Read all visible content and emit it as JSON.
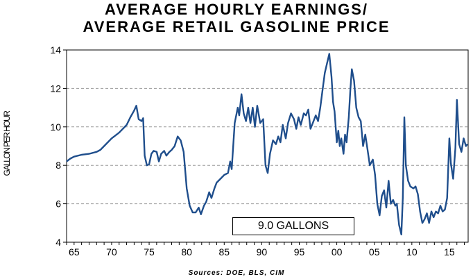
{
  "title": {
    "line1": "AVERAGE HOURLY EARNINGS/",
    "line2": "AVERAGE RETAIL GASOLINE PRICE"
  },
  "source": "Sources:  DOE, BLS, CIM",
  "colors": {
    "series": "#1f4e8c",
    "grid": "#9a9a9a",
    "axis": "#000000"
  },
  "chart_data": {
    "type": "line",
    "title": "AVERAGE HOURLY EARNINGS/ AVERAGE RETAIL GASOLINE PRICE",
    "xlabel": "",
    "ylabel": "GALLON PER HOUR",
    "xlim": [
      1964,
      2017.5
    ],
    "ylim": [
      4,
      14
    ],
    "x_ticks": [
      1965,
      1970,
      1975,
      1980,
      1985,
      1990,
      1995,
      2000,
      2005,
      2010,
      2015
    ],
    "x_tick_labels": [
      "65",
      "70",
      "75",
      "80",
      "85",
      "90",
      "95",
      "00",
      "05",
      "10",
      "15"
    ],
    "y_ticks": [
      4,
      6,
      8,
      10,
      12,
      14
    ],
    "y_tick_labels": [
      "4",
      "6",
      "8",
      "10",
      "12",
      "14"
    ],
    "grid": "horizontal dashed",
    "annotation": "9.0 GALLONS",
    "series": [
      {
        "values": [
          [
            1964.0,
            8.2
          ],
          [
            1964.5,
            8.35
          ],
          [
            1965.0,
            8.45
          ],
          [
            1966.0,
            8.55
          ],
          [
            1967.0,
            8.6
          ],
          [
            1968.0,
            8.7
          ],
          [
            1968.5,
            8.8
          ],
          [
            1969.0,
            9.0
          ],
          [
            1970.0,
            9.4
          ],
          [
            1971.0,
            9.7
          ],
          [
            1972.0,
            10.1
          ],
          [
            1972.5,
            10.5
          ],
          [
            1973.0,
            10.85
          ],
          [
            1973.3,
            11.1
          ],
          [
            1973.6,
            10.4
          ],
          [
            1974.0,
            10.3
          ],
          [
            1974.2,
            10.45
          ],
          [
            1974.4,
            8.5
          ],
          [
            1974.7,
            8.0
          ],
          [
            1975.0,
            8.05
          ],
          [
            1975.3,
            8.6
          ],
          [
            1975.6,
            8.75
          ],
          [
            1976.0,
            8.7
          ],
          [
            1976.3,
            8.2
          ],
          [
            1976.6,
            8.6
          ],
          [
            1977.0,
            8.75
          ],
          [
            1977.3,
            8.5
          ],
          [
            1977.7,
            8.7
          ],
          [
            1978.0,
            8.8
          ],
          [
            1978.4,
            9.0
          ],
          [
            1978.8,
            9.5
          ],
          [
            1979.2,
            9.3
          ],
          [
            1979.6,
            8.7
          ],
          [
            1980.0,
            6.8
          ],
          [
            1980.4,
            5.9
          ],
          [
            1980.8,
            5.55
          ],
          [
            1981.2,
            5.55
          ],
          [
            1981.6,
            5.8
          ],
          [
            1981.9,
            5.45
          ],
          [
            1982.3,
            5.9
          ],
          [
            1982.6,
            6.1
          ],
          [
            1983.0,
            6.6
          ],
          [
            1983.3,
            6.3
          ],
          [
            1983.7,
            6.8
          ],
          [
            1984.0,
            7.1
          ],
          [
            1984.5,
            7.3
          ],
          [
            1985.0,
            7.5
          ],
          [
            1985.5,
            7.6
          ],
          [
            1985.8,
            8.2
          ],
          [
            1986.0,
            7.8
          ],
          [
            1986.4,
            10.2
          ],
          [
            1986.8,
            11.0
          ],
          [
            1987.0,
            10.6
          ],
          [
            1987.3,
            11.7
          ],
          [
            1987.6,
            10.7
          ],
          [
            1987.9,
            10.3
          ],
          [
            1988.2,
            11.0
          ],
          [
            1988.5,
            10.2
          ],
          [
            1988.8,
            11.0
          ],
          [
            1989.1,
            10.0
          ],
          [
            1989.4,
            11.1
          ],
          [
            1989.8,
            10.2
          ],
          [
            1990.2,
            10.4
          ],
          [
            1990.5,
            8.0
          ],
          [
            1990.8,
            7.6
          ],
          [
            1991.1,
            8.6
          ],
          [
            1991.5,
            9.3
          ],
          [
            1991.9,
            9.1
          ],
          [
            1992.2,
            9.5
          ],
          [
            1992.5,
            9.2
          ],
          [
            1992.8,
            10.1
          ],
          [
            1993.2,
            9.4
          ],
          [
            1993.5,
            10.2
          ],
          [
            1993.9,
            10.7
          ],
          [
            1994.3,
            10.4
          ],
          [
            1994.6,
            9.9
          ],
          [
            1994.9,
            10.5
          ],
          [
            1995.2,
            10.1
          ],
          [
            1995.6,
            10.7
          ],
          [
            1995.9,
            10.6
          ],
          [
            1996.2,
            10.9
          ],
          [
            1996.5,
            9.9
          ],
          [
            1996.8,
            10.2
          ],
          [
            1997.2,
            10.6
          ],
          [
            1997.5,
            10.3
          ],
          [
            1997.8,
            11.0
          ],
          [
            1998.1,
            11.9
          ],
          [
            1998.4,
            12.8
          ],
          [
            1998.7,
            13.3
          ],
          [
            1999.0,
            13.8
          ],
          [
            1999.3,
            12.6
          ],
          [
            1999.5,
            11.3
          ],
          [
            1999.7,
            10.8
          ],
          [
            2000.0,
            9.2
          ],
          [
            2000.2,
            9.8
          ],
          [
            2000.4,
            9.0
          ],
          [
            2000.6,
            9.4
          ],
          [
            2000.9,
            8.6
          ],
          [
            2001.1,
            9.6
          ],
          [
            2001.3,
            9.2
          ],
          [
            2001.6,
            10.5
          ],
          [
            2001.8,
            11.9
          ],
          [
            2002.0,
            13.0
          ],
          [
            2002.3,
            12.4
          ],
          [
            2002.6,
            11.0
          ],
          [
            2002.9,
            10.5
          ],
          [
            2003.2,
            10.3
          ],
          [
            2003.5,
            9.0
          ],
          [
            2003.8,
            9.6
          ],
          [
            2004.1,
            8.8
          ],
          [
            2004.4,
            8.0
          ],
          [
            2004.8,
            8.3
          ],
          [
            2005.1,
            7.5
          ],
          [
            2005.4,
            6.0
          ],
          [
            2005.7,
            5.4
          ],
          [
            2006.0,
            6.4
          ],
          [
            2006.3,
            6.7
          ],
          [
            2006.6,
            5.8
          ],
          [
            2006.9,
            7.2
          ],
          [
            2007.2,
            6.0
          ],
          [
            2007.5,
            6.2
          ],
          [
            2007.8,
            5.9
          ],
          [
            2008.0,
            6.0
          ],
          [
            2008.3,
            4.9
          ],
          [
            2008.6,
            4.4
          ],
          [
            2008.8,
            6.3
          ],
          [
            2009.0,
            10.5
          ],
          [
            2009.2,
            8.0
          ],
          [
            2009.5,
            7.2
          ],
          [
            2009.8,
            6.9
          ],
          [
            2010.2,
            6.8
          ],
          [
            2010.5,
            6.9
          ],
          [
            2010.8,
            6.5
          ],
          [
            2011.1,
            5.6
          ],
          [
            2011.4,
            5.0
          ],
          [
            2011.7,
            5.2
          ],
          [
            2012.0,
            5.5
          ],
          [
            2012.3,
            5.0
          ],
          [
            2012.6,
            5.6
          ],
          [
            2012.9,
            5.3
          ],
          [
            2013.2,
            5.6
          ],
          [
            2013.5,
            5.5
          ],
          [
            2013.8,
            5.9
          ],
          [
            2014.1,
            5.6
          ],
          [
            2014.4,
            5.7
          ],
          [
            2014.7,
            6.3
          ],
          [
            2015.0,
            9.4
          ],
          [
            2015.2,
            8.1
          ],
          [
            2015.5,
            7.3
          ],
          [
            2015.8,
            8.9
          ],
          [
            2016.0,
            11.4
          ],
          [
            2016.3,
            9.1
          ],
          [
            2016.6,
            8.7
          ],
          [
            2016.9,
            9.4
          ],
          [
            2017.2,
            9.0
          ],
          [
            2017.4,
            9.1
          ]
        ]
      }
    ]
  }
}
